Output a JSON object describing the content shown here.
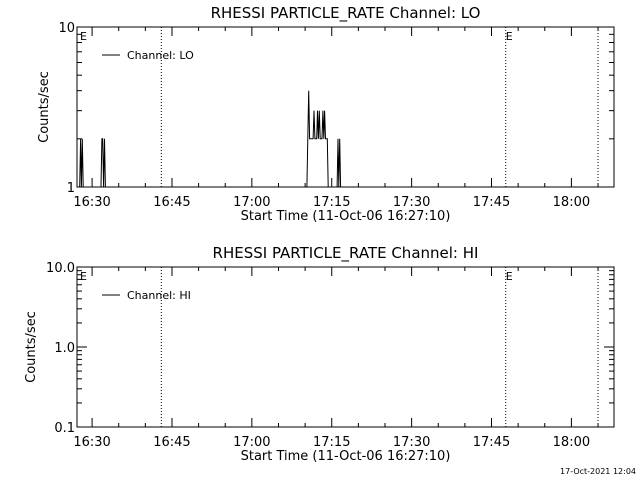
{
  "footer": {
    "timestamp": "17-Oct-2021 12:04"
  },
  "chart_data": [
    {
      "type": "line",
      "title": "RHESSI PARTICLE_RATE Channel: LO",
      "xlabel": "Start Time (11-Oct-06 16:27:10)",
      "ylabel": "Counts/sec",
      "yscale": "log",
      "ylim": [
        1,
        10
      ],
      "yticks": [
        1,
        10
      ],
      "ytick_labels": [
        "1",
        "10"
      ],
      "xlim": [
        "16:27:10",
        "18:08:00"
      ],
      "xticks": [
        "16:30",
        "16:45",
        "17:00",
        "17:15",
        "17:30",
        "17:45",
        "18:00"
      ],
      "legend": {
        "position": "top-left",
        "entries": [
          "Channel: LO"
        ]
      },
      "event_lines": [
        "16:43:00",
        "17:47:40",
        "18:05:00"
      ],
      "event_markers": [
        {
          "label": "E",
          "time": "16:27:10"
        },
        {
          "label": "E",
          "time": "17:47:40"
        }
      ],
      "series": [
        {
          "name": "Channel: LO",
          "points": [
            [
              "16:27:40",
              1
            ],
            [
              "16:27:50",
              2
            ],
            [
              "16:28:00",
              1
            ],
            [
              "16:28:10",
              2
            ],
            [
              "16:28:20",
              1
            ],
            [
              "16:31:40",
              1
            ],
            [
              "16:31:50",
              2
            ],
            [
              "16:32:00",
              2
            ],
            [
              "16:32:10",
              1
            ],
            [
              "16:32:20",
              2
            ],
            [
              "16:32:30",
              1
            ],
            [
              "17:10:20",
              1
            ],
            [
              "17:10:30",
              2
            ],
            [
              "17:10:40",
              4
            ],
            [
              "17:10:50",
              2
            ],
            [
              "17:11:10",
              2
            ],
            [
              "17:11:30",
              2
            ],
            [
              "17:11:40",
              3
            ],
            [
              "17:11:50",
              2
            ],
            [
              "17:12:10",
              2
            ],
            [
              "17:12:20",
              3
            ],
            [
              "17:12:30",
              2
            ],
            [
              "17:12:40",
              3
            ],
            [
              "17:12:50",
              2
            ],
            [
              "17:13:10",
              2
            ],
            [
              "17:13:20",
              3
            ],
            [
              "17:13:30",
              2
            ],
            [
              "17:13:40",
              3
            ],
            [
              "17:13:50",
              2
            ],
            [
              "17:14:10",
              2
            ],
            [
              "17:14:20",
              1
            ],
            [
              "17:16:00",
              1
            ],
            [
              "17:16:10",
              2
            ],
            [
              "17:16:20",
              1
            ],
            [
              "17:16:30",
              2
            ],
            [
              "17:16:40",
              1
            ]
          ]
        }
      ]
    },
    {
      "type": "line",
      "title": "RHESSI PARTICLE_RATE Channel: HI",
      "xlabel": "Start Time (11-Oct-06 16:27:10)",
      "ylabel": "Counts/sec",
      "yscale": "log",
      "ylim": [
        0.1,
        10
      ],
      "yticks": [
        0.1,
        1,
        10
      ],
      "ytick_labels": [
        "0.1",
        "1.0",
        "10.0"
      ],
      "xlim": [
        "16:27:10",
        "18:08:00"
      ],
      "xticks": [
        "16:30",
        "16:45",
        "17:00",
        "17:15",
        "17:30",
        "17:45",
        "18:00"
      ],
      "legend": {
        "position": "top-left",
        "entries": [
          "Channel: HI"
        ]
      },
      "event_lines": [
        "16:43:00",
        "17:47:40",
        "18:05:00"
      ],
      "event_markers": [
        {
          "label": "E",
          "time": "16:27:10"
        },
        {
          "label": "E",
          "time": "17:47:40"
        }
      ],
      "series": [
        {
          "name": "Channel: HI",
          "points": []
        }
      ]
    }
  ]
}
